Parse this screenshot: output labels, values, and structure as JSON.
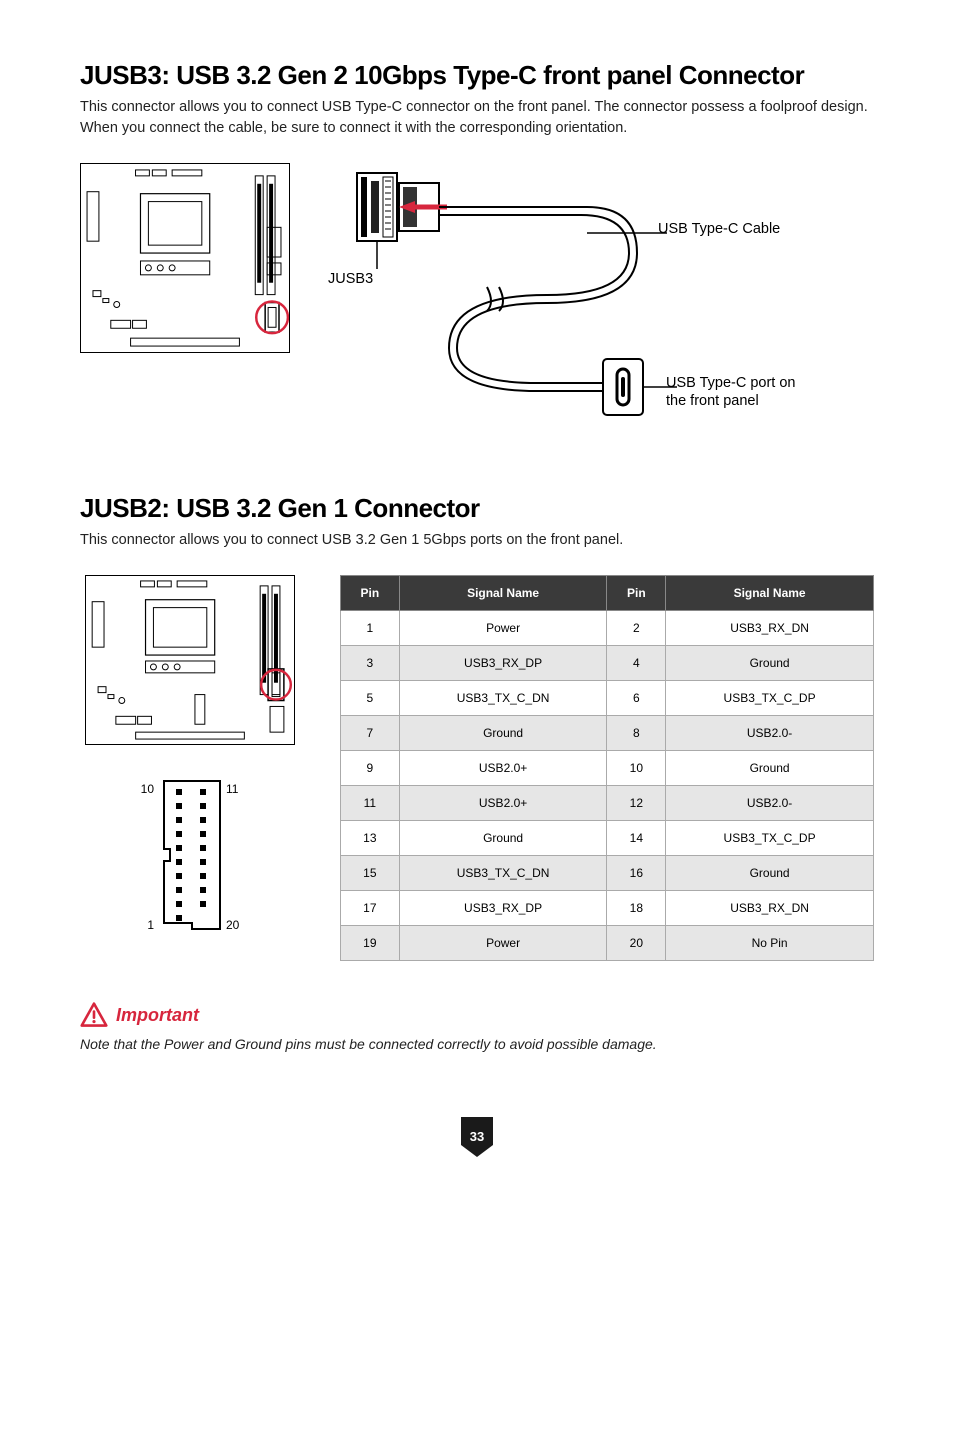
{
  "section1": {
    "heading": "JUSB3: USB 3.2 Gen 2 10Gbps Type-C front panel Connector",
    "description": "This connector allows you to connect USB Type-C connector on the front panel. The connector possess a foolproof design. When you connect the cable, be sure to connect it with the corresponding orientation.",
    "jusb3_label": "JUSB3",
    "cable_label": "USB Type-C Cable",
    "port_label_line1": "USB Type-C port on",
    "port_label_line2": "the front panel",
    "highlight_color": "#d7263d"
  },
  "section2": {
    "heading": "JUSB2: USB 3.2 Gen 1 Connector",
    "description": "This connector allows you to connect USB 3.2 Gen 1 5Gbps ports on the front panel.",
    "highlight_color": "#d7263d",
    "pin_diagram": {
      "top_left": "10",
      "top_right": "11",
      "bottom_left": "1",
      "bottom_right": "20"
    },
    "table": {
      "header_pin": "Pin",
      "header_signal": "Signal Name",
      "header_bg": "#3a3a3a",
      "header_fg": "#ffffff",
      "row_alt_bg": "#e6e6e6",
      "rows": [
        {
          "p1": "1",
          "s1": "Power",
          "p2": "2",
          "s2": "USB3_RX_DN"
        },
        {
          "p1": "3",
          "s1": "USB3_RX_DP",
          "p2": "4",
          "s2": "Ground"
        },
        {
          "p1": "5",
          "s1": "USB3_TX_C_DN",
          "p2": "6",
          "s2": "USB3_TX_C_DP"
        },
        {
          "p1": "7",
          "s1": "Ground",
          "p2": "8",
          "s2": "USB2.0-"
        },
        {
          "p1": "9",
          "s1": "USB2.0+",
          "p2": "10",
          "s2": "Ground"
        },
        {
          "p1": "11",
          "s1": "USB2.0+",
          "p2": "12",
          "s2": "USB2.0-"
        },
        {
          "p1": "13",
          "s1": "Ground",
          "p2": "14",
          "s2": "USB3_TX_C_DP"
        },
        {
          "p1": "15",
          "s1": "USB3_TX_C_DN",
          "p2": "16",
          "s2": "Ground"
        },
        {
          "p1": "17",
          "s1": "USB3_RX_DP",
          "p2": "18",
          "s2": "USB3_RX_DN"
        },
        {
          "p1": "19",
          "s1": "Power",
          "p2": "20",
          "s2": "No Pin"
        }
      ]
    }
  },
  "important": {
    "label": "Important",
    "note": "Note that the Power and Ground pins must be connected correctly to avoid possible damage.",
    "color": "#d7263d"
  },
  "page_number": "33"
}
